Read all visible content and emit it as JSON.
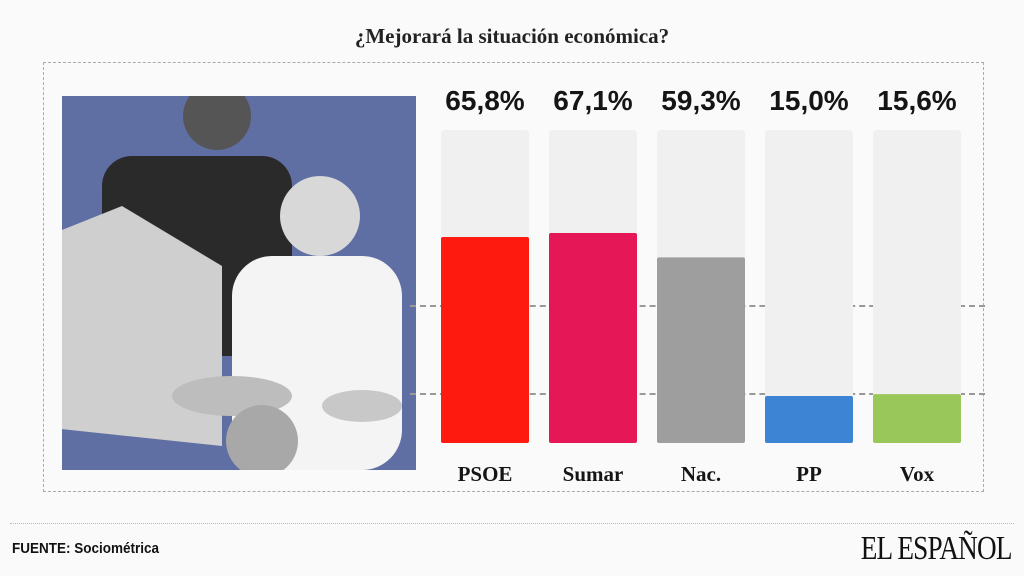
{
  "chart_data": {
    "type": "bar",
    "title": "¿Mejorará la situación económica?",
    "categories": [
      "PSOE",
      "Sumar",
      "Nac.",
      "PP",
      "Vox"
    ],
    "values": [
      65.8,
      67.1,
      59.3,
      15.0,
      15.6
    ],
    "value_labels": [
      "65,8%",
      "67,1%",
      "59,3%",
      "15,0%",
      "15,6%"
    ],
    "colors": [
      "#ff1a10",
      "#e51757",
      "#9e9e9e",
      "#3d85d4",
      "#99c75a"
    ],
    "track_color": "#f0f0f0",
    "ylim": [
      0,
      100
    ],
    "xlabel": "",
    "ylabel": ""
  },
  "footer": {
    "source": "FUENTE: Sociométrica",
    "logo": "EL ESPAÑOL"
  }
}
